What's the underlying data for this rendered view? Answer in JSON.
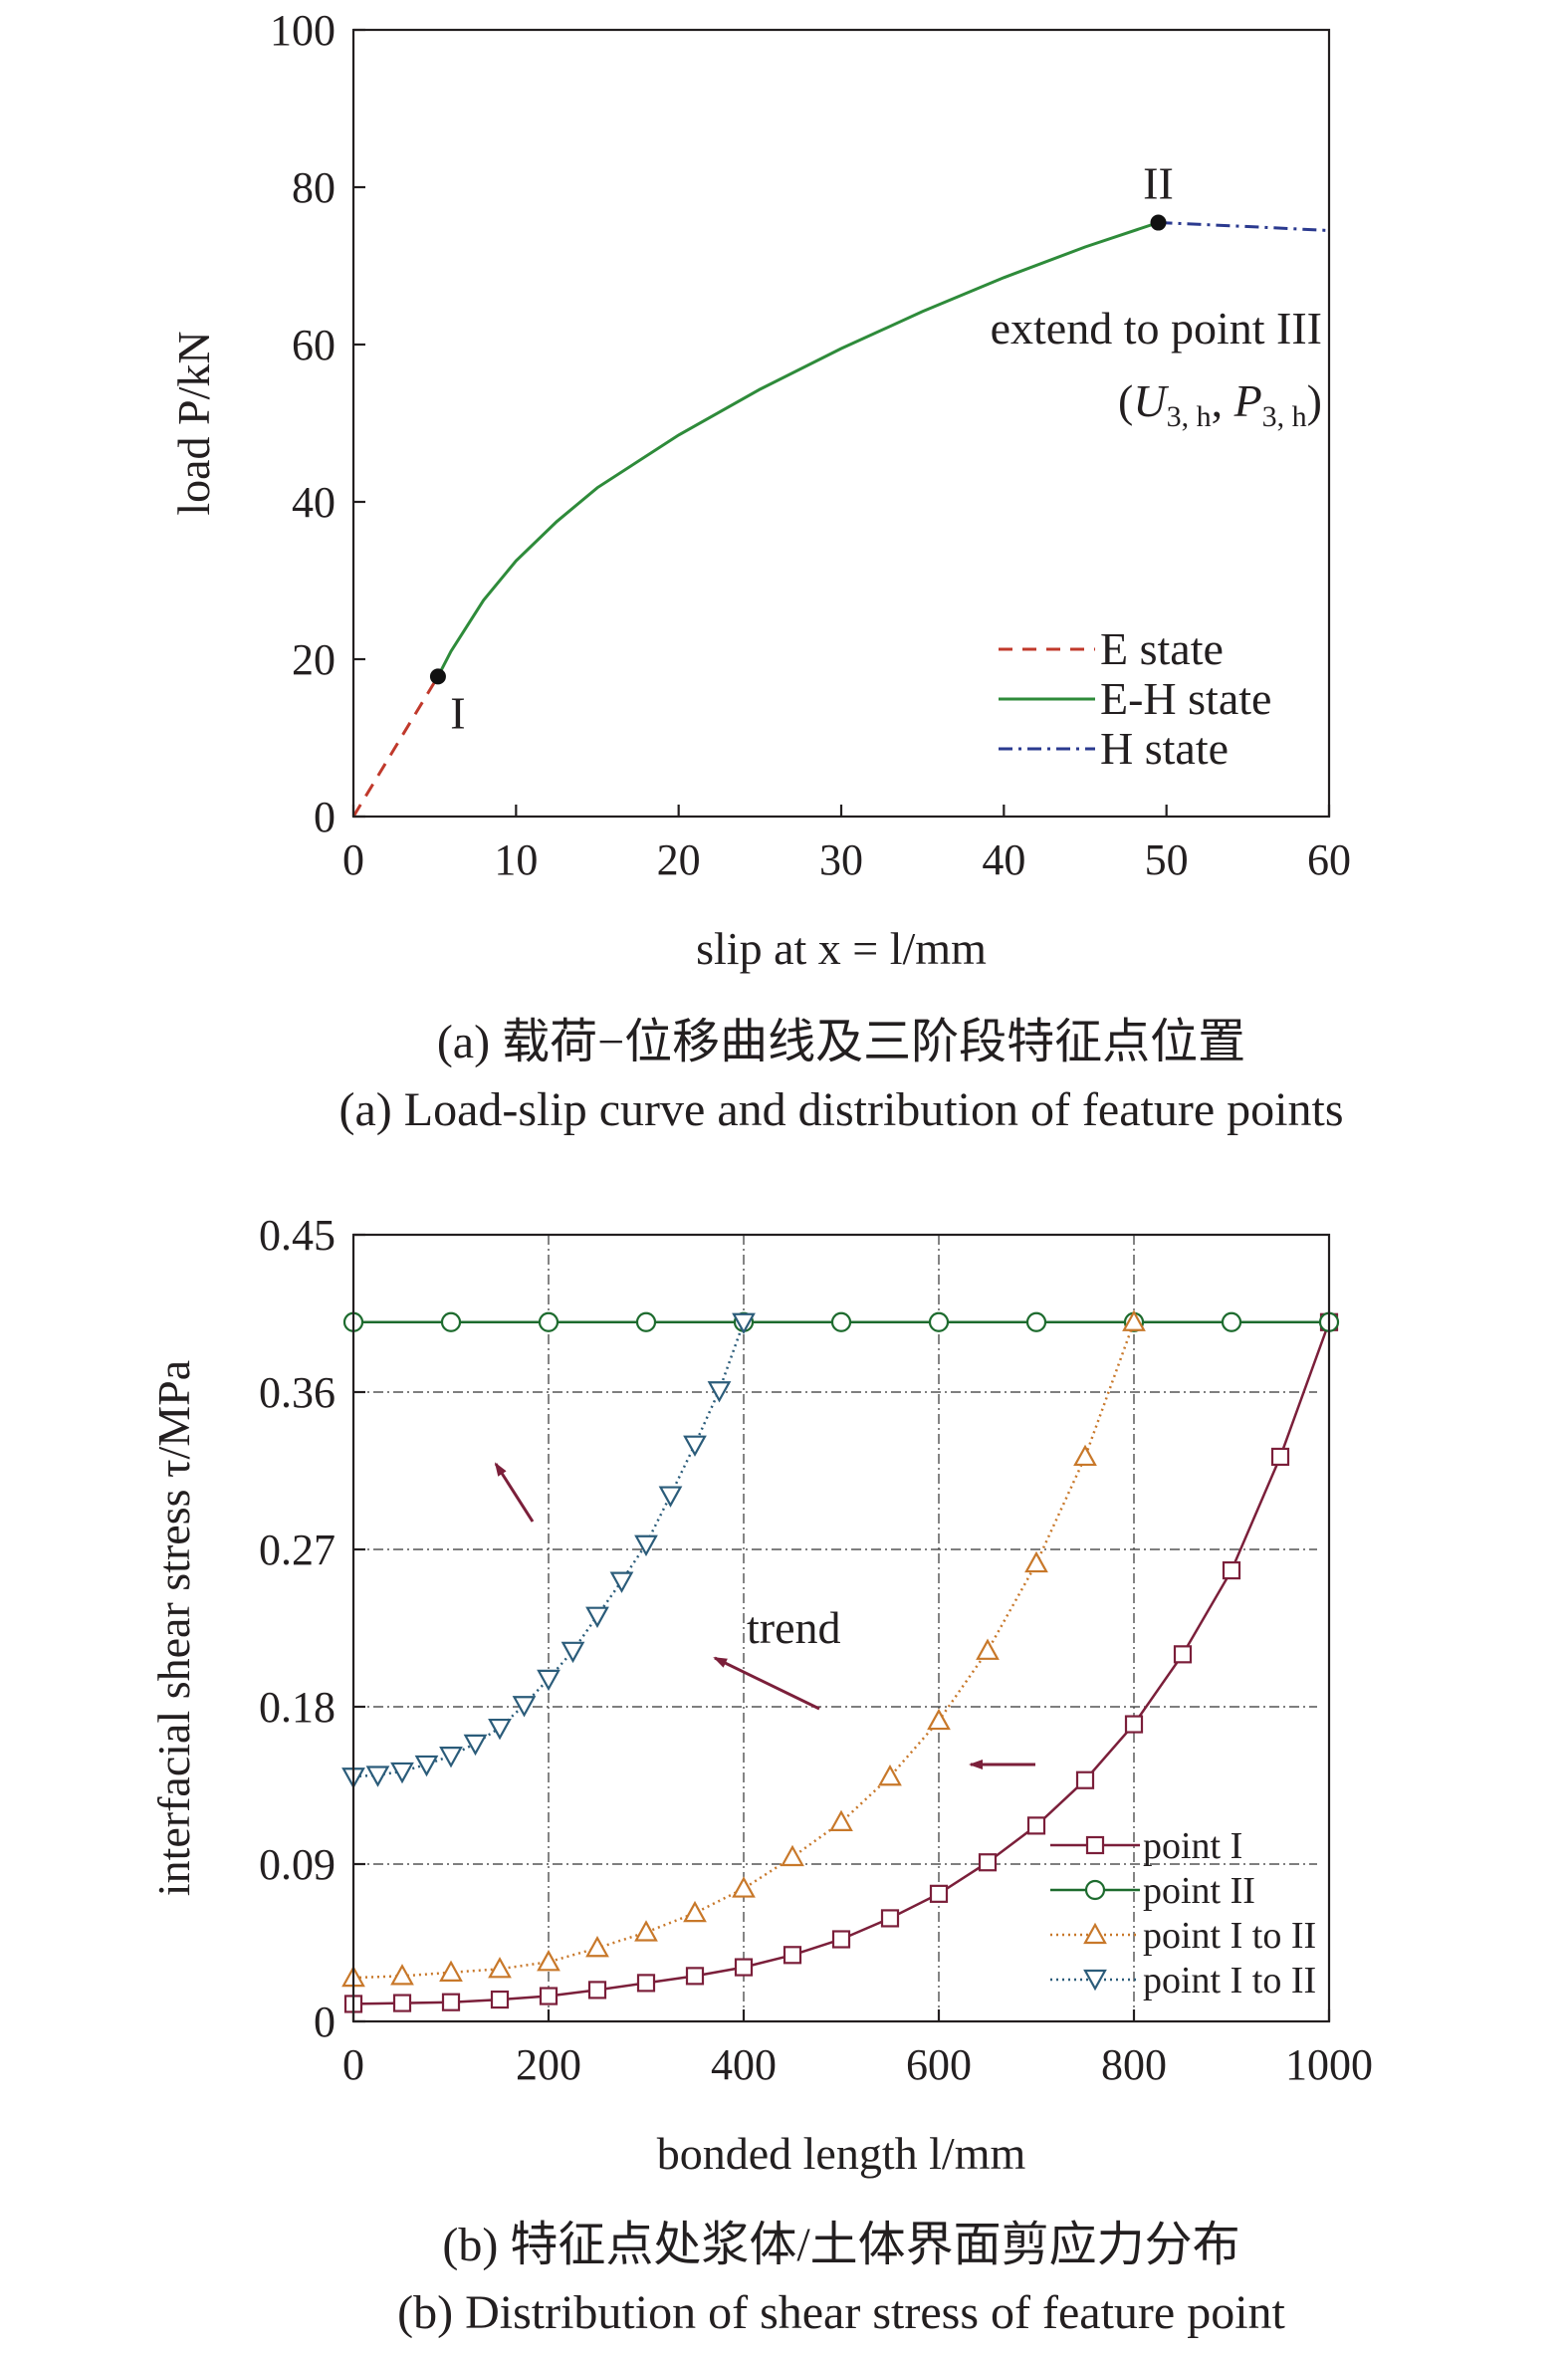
{
  "chart_data": [
    {
      "type": "line",
      "xlabel": "slip at x = l/mm",
      "ylabel": "load P/kN",
      "xlim": [
        0,
        60
      ],
      "ylim": [
        0,
        100
      ],
      "xticks": [
        0,
        10,
        20,
        30,
        40,
        50,
        60
      ],
      "yticks": [
        0,
        20,
        40,
        60,
        80,
        100
      ],
      "grid": false,
      "legend_position": "lower-right",
      "series": [
        {
          "name": "E state",
          "color": "#c0392b",
          "style": "dashed",
          "x": [
            0,
            5.2
          ],
          "y": [
            0,
            17.8
          ]
        },
        {
          "name": "E-H state",
          "color": "#2e8b3a",
          "style": "solid",
          "x": [
            5.2,
            6,
            8,
            10,
            12.5,
            15,
            20,
            25,
            30,
            35,
            40,
            45,
            49.5
          ],
          "y": [
            17.8,
            21.0,
            27.5,
            32.5,
            37.5,
            41.8,
            48.5,
            54.3,
            59.5,
            64.2,
            68.5,
            72.4,
            75.5
          ]
        },
        {
          "name": "H state",
          "color": "#2b3a8f",
          "style": "dashdot",
          "x": [
            49.5,
            55,
            60
          ],
          "y": [
            75.5,
            75.0,
            74.5
          ]
        }
      ],
      "points": [
        {
          "label": "I",
          "x": 5.2,
          "y": 17.8
        },
        {
          "label": "II",
          "x": 49.5,
          "y": 75.5
        }
      ],
      "annotation_line1": "extend to point III",
      "annotation_sym_U": "U",
      "annotation_sym_P": "P",
      "annotation_sub": "3, h",
      "caption_cn": "(a) 载荷−位移曲线及三阶段特征点位置",
      "caption_en": "(a) Load-slip curve and distribution of feature points"
    },
    {
      "type": "line",
      "xlabel": "bonded length l/mm",
      "ylabel": "interfacial shear stress τ/MPa",
      "xlim": [
        0,
        1000
      ],
      "ylim": [
        0,
        0.45
      ],
      "xticks": [
        0,
        200,
        400,
        600,
        800,
        1000
      ],
      "yticks": [
        "0",
        "0.09",
        "0.18",
        "0.27",
        "0.36",
        "0.45"
      ],
      "grid": true,
      "legend_position": "lower-right",
      "series": [
        {
          "name": "point I",
          "color": "#7b1f3a",
          "marker": "square",
          "style": "solid",
          "x": [
            0,
            50,
            100,
            150,
            200,
            250,
            300,
            350,
            400,
            450,
            500,
            550,
            600,
            650,
            700,
            750,
            800,
            850,
            900,
            950,
            1000
          ],
          "y": [
            0.01,
            0.0105,
            0.011,
            0.0125,
            0.0145,
            0.018,
            0.022,
            0.026,
            0.031,
            0.038,
            0.047,
            0.059,
            0.073,
            0.091,
            0.112,
            0.138,
            0.17,
            0.21,
            0.258,
            0.323,
            0.4
          ]
        },
        {
          "name": "point II",
          "color": "#1d6b2e",
          "marker": "circle",
          "style": "solid",
          "x": [
            0,
            100,
            200,
            300,
            400,
            500,
            600,
            700,
            800,
            900,
            1000
          ],
          "y": [
            0.4,
            0.4,
            0.4,
            0.4,
            0.4,
            0.4,
            0.4,
            0.4,
            0.4,
            0.4,
            0.4
          ]
        },
        {
          "name": "point I to II",
          "color": "#c8782a",
          "marker": "triangle-up",
          "style": "dotted",
          "x": [
            0,
            50,
            100,
            150,
            200,
            250,
            300,
            350,
            400,
            450,
            500,
            550,
            600,
            650,
            700,
            750,
            800
          ],
          "y": [
            0.025,
            0.026,
            0.028,
            0.03,
            0.034,
            0.042,
            0.051,
            0.062,
            0.076,
            0.094,
            0.114,
            0.14,
            0.172,
            0.212,
            0.262,
            0.323,
            0.4
          ]
        },
        {
          "name": "point I to II",
          "color": "#2b5c7a",
          "marker": "triangle-down",
          "style": "dotted",
          "x": [
            0,
            25,
            50,
            75,
            100,
            125,
            150,
            175,
            200,
            225,
            250,
            275,
            300,
            325,
            350,
            375,
            400
          ],
          "y": [
            0.14,
            0.141,
            0.143,
            0.147,
            0.152,
            0.159,
            0.168,
            0.181,
            0.196,
            0.212,
            0.232,
            0.252,
            0.273,
            0.301,
            0.33,
            0.361,
            0.4
          ]
        }
      ],
      "annotation": "trend",
      "caption_cn": "(b) 特征点处浆体/土体界面剪应力分布",
      "caption_en": "(b) Distribution of shear stress of feature point"
    }
  ]
}
